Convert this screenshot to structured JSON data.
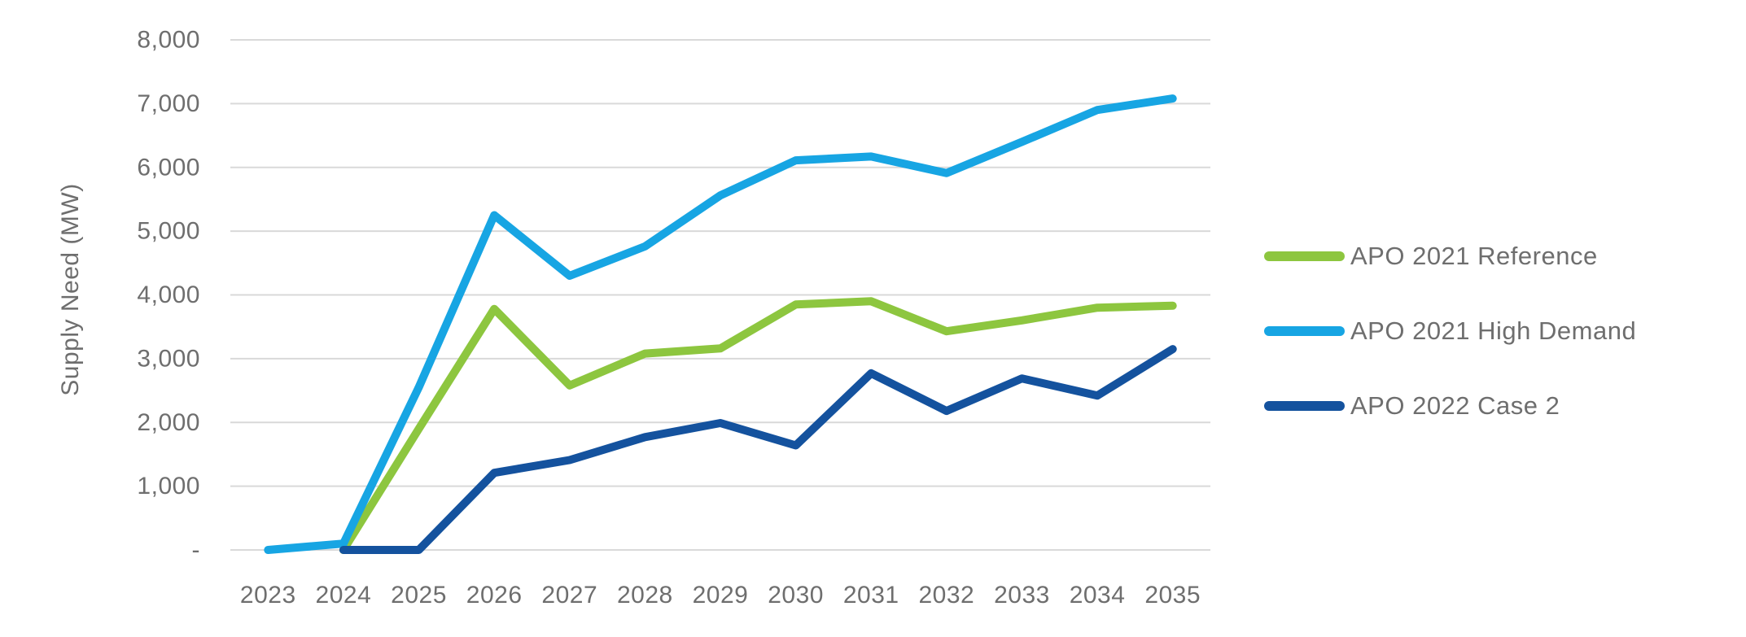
{
  "chart_data": {
    "type": "line",
    "title": "",
    "xlabel": "",
    "ylabel": "Supply Need (MW)",
    "categories": [
      "2023",
      "2024",
      "2025",
      "2026",
      "2027",
      "2028",
      "2029",
      "2030",
      "2031",
      "2032",
      "2033",
      "2034",
      "2035"
    ],
    "series": [
      {
        "name": "APO 2021 Reference",
        "color": "#8DC63F",
        "values": [
          null,
          0,
          1900,
          3780,
          2580,
          3080,
          3160,
          3850,
          3900,
          3430,
          3600,
          3800,
          3830
        ]
      },
      {
        "name": "APO 2021 High Demand",
        "color": "#17A5E3",
        "values": [
          0,
          100,
          2550,
          5250,
          4300,
          4760,
          5560,
          6110,
          6170,
          5910,
          6400,
          6900,
          7080
        ]
      },
      {
        "name": "APO 2022 Case 2",
        "color": "#14529E",
        "values": [
          null,
          0,
          0,
          1210,
          1410,
          1770,
          1990,
          1640,
          2770,
          2180,
          2690,
          2420,
          3150
        ]
      }
    ],
    "ylim": [
      0,
      8000
    ],
    "y_ticks": [
      {
        "value": 0,
        "label": "-"
      },
      {
        "value": 1000,
        "label": "1,000"
      },
      {
        "value": 2000,
        "label": "2,000"
      },
      {
        "value": 3000,
        "label": "3,000"
      },
      {
        "value": 4000,
        "label": "4,000"
      },
      {
        "value": 5000,
        "label": "5,000"
      },
      {
        "value": 6000,
        "label": "6,000"
      },
      {
        "value": 7000,
        "label": "7,000"
      },
      {
        "value": 8000,
        "label": "8,000"
      }
    ],
    "grid": true,
    "legend_position": "right",
    "colors": {
      "grid": "#D9D9D9",
      "text": "#6E6E6E",
      "background": "#FFFFFF"
    }
  }
}
